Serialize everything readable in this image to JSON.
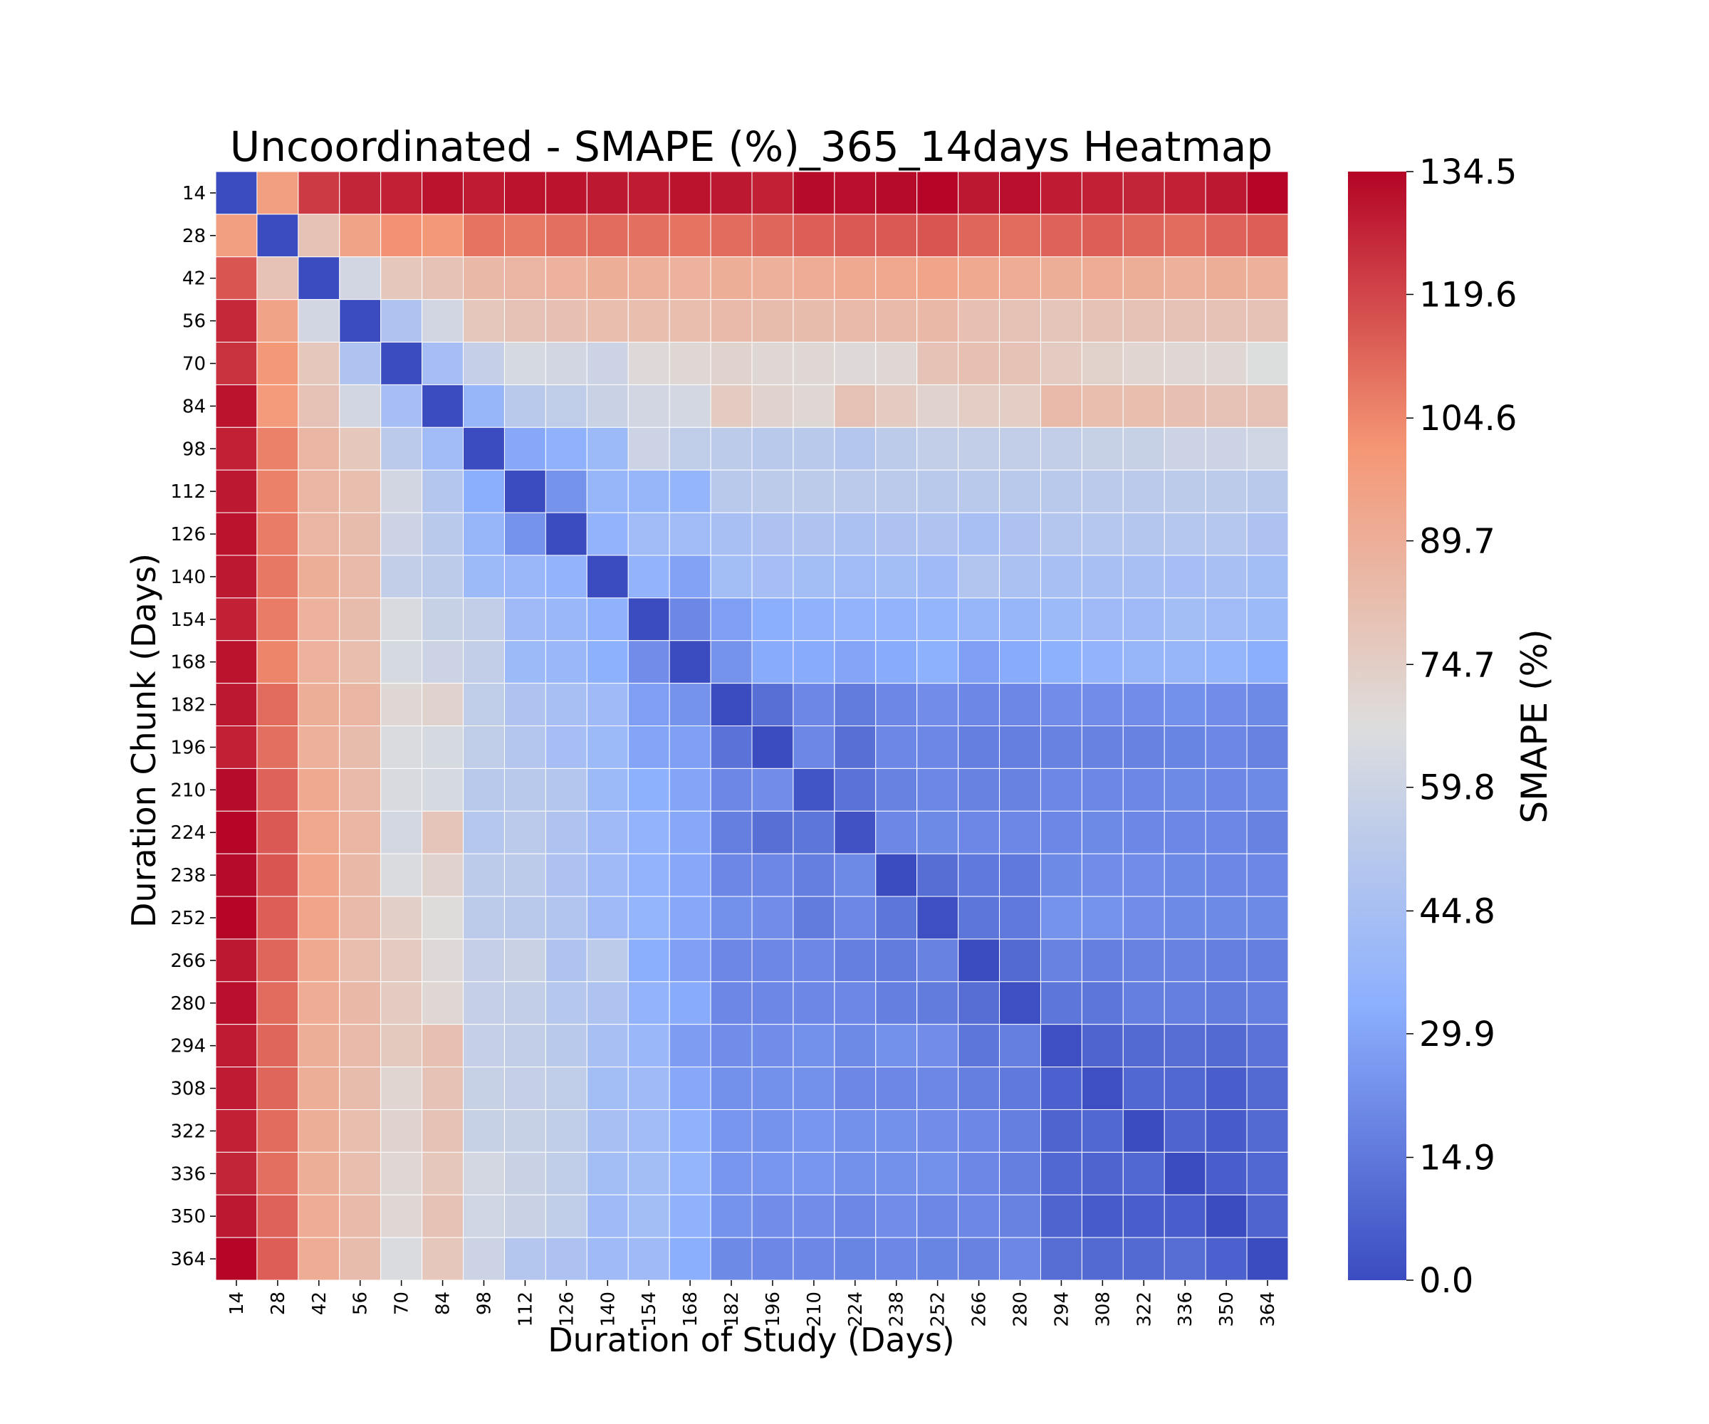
{
  "chart_data": {
    "type": "heatmap",
    "title": "Uncoordinated - SMAPE (%)_365_14days Heatmap",
    "xlabel": "Duration of Study (Days)",
    "ylabel": "Duration Chunk (Days)",
    "colorbar_label": "SMAPE (%)",
    "colormap": "coolwarm",
    "vmin": 0.0,
    "vmax": 134.5,
    "colorbar_ticks": [
      "0.0",
      "14.9",
      "29.9",
      "44.8",
      "59.8",
      "74.7",
      "89.7",
      "104.6",
      "119.6",
      "134.5"
    ],
    "x": [
      "14",
      "28",
      "42",
      "56",
      "70",
      "84",
      "98",
      "112",
      "126",
      "140",
      "154",
      "168",
      "182",
      "196",
      "210",
      "224",
      "238",
      "252",
      "266",
      "280",
      "294",
      "308",
      "322",
      "336",
      "350",
      "364"
    ],
    "y": [
      "14",
      "28",
      "42",
      "56",
      "70",
      "84",
      "98",
      "112",
      "126",
      "140",
      "154",
      "168",
      "182",
      "196",
      "210",
      "224",
      "238",
      "252",
      "266",
      "280",
      "294",
      "308",
      "322",
      "336",
      "350",
      "364"
    ],
    "values": [
      [
        0,
        97,
        122,
        127,
        128,
        131,
        129,
        131,
        131,
        130,
        129,
        131,
        130,
        128,
        133,
        132,
        133,
        134,
        130,
        132,
        129,
        128,
        127,
        128,
        130,
        134
      ],
      [
        97,
        0,
        80,
        95,
        102,
        100,
        109,
        108,
        110,
        111,
        110,
        109,
        111,
        112,
        114,
        115,
        115,
        116,
        112,
        111,
        113,
        114,
        112,
        111,
        113,
        114
      ],
      [
        116,
        80,
        0,
        62,
        78,
        80,
        85,
        86,
        88,
        90,
        89,
        88,
        90,
        89,
        91,
        92,
        93,
        94,
        92,
        91,
        90,
        91,
        90,
        89,
        90,
        89
      ],
      [
        126,
        95,
        62,
        0,
        48,
        62,
        78,
        80,
        81,
        82,
        82,
        82,
        84,
        83,
        83,
        84,
        84,
        85,
        81,
        80,
        79,
        80,
        80,
        80,
        80,
        80
      ],
      [
        124,
        100,
        78,
        48,
        0,
        44,
        57,
        64,
        62,
        60,
        69,
        70,
        72,
        70,
        70,
        69,
        70,
        80,
        81,
        80,
        76,
        73,
        71,
        70,
        70,
        67
      ],
      [
        131,
        99,
        80,
        62,
        44,
        0,
        38,
        52,
        55,
        59,
        62,
        63,
        76,
        72,
        70,
        80,
        76,
        72,
        75,
        75,
        84,
        82,
        82,
        81,
        80,
        80
      ],
      [
        128,
        106,
        86,
        78,
        53,
        42,
        0,
        31,
        35,
        40,
        60,
        55,
        54,
        52,
        52,
        50,
        54,
        56,
        56,
        56,
        56,
        58,
        58,
        60,
        60,
        61
      ],
      [
        130,
        106,
        86,
        82,
        62,
        50,
        33,
        0,
        24,
        38,
        38,
        37,
        52,
        54,
        54,
        53,
        53,
        52,
        52,
        52,
        52,
        53,
        53,
        54,
        54,
        52
      ],
      [
        131,
        107,
        86,
        83,
        60,
        52,
        38,
        24,
        0,
        36,
        42,
        42,
        45,
        47,
        48,
        46,
        47,
        48,
        45,
        47,
        50,
        51,
        50,
        51,
        51,
        47
      ],
      [
        130,
        108,
        90,
        84,
        56,
        54,
        40,
        39,
        36,
        0,
        36,
        29,
        43,
        44,
        43,
        42,
        43,
        41,
        49,
        46,
        45,
        45,
        45,
        44,
        45,
        43
      ],
      [
        128,
        107,
        88,
        83,
        65,
        58,
        56,
        41,
        39,
        35,
        0,
        20,
        28,
        33,
        35,
        36,
        36,
        37,
        38,
        38,
        40,
        41,
        41,
        43,
        42,
        40
      ],
      [
        131,
        105,
        88,
        82,
        64,
        60,
        56,
        40,
        39,
        34,
        22,
        0,
        24,
        32,
        32,
        30,
        32,
        34,
        28,
        32,
        34,
        36,
        38,
        38,
        37,
        33
      ],
      [
        130,
        111,
        90,
        86,
        70,
        72,
        55,
        48,
        45,
        41,
        28,
        24,
        0,
        12,
        20,
        16,
        20,
        22,
        20,
        20,
        22,
        22,
        22,
        23,
        22,
        21
      ],
      [
        128,
        110,
        89,
        83,
        66,
        64,
        55,
        50,
        44,
        40,
        30,
        28,
        13,
        0,
        20,
        12,
        20,
        20,
        17,
        17,
        18,
        18,
        18,
        19,
        20,
        18
      ],
      [
        133,
        113,
        92,
        84,
        65,
        64,
        52,
        52,
        50,
        40,
        34,
        30,
        20,
        22,
        3,
        13,
        18,
        20,
        18,
        18,
        20,
        20,
        20,
        21,
        20,
        21
      ],
      [
        134,
        115,
        93,
        86,
        63,
        79,
        51,
        53,
        48,
        41,
        36,
        31,
        17,
        12,
        14,
        2,
        20,
        21,
        20,
        20,
        20,
        21,
        20,
        20,
        20,
        18
      ],
      [
        133,
        116,
        94,
        85,
        66,
        72,
        54,
        54,
        47,
        41,
        36,
        31,
        20,
        20,
        17,
        21,
        0,
        11,
        15,
        15,
        21,
        22,
        22,
        21,
        20,
        20
      ],
      [
        134,
        114,
        94,
        84,
        74,
        68,
        54,
        52,
        49,
        41,
        37,
        31,
        23,
        22,
        16,
        20,
        14,
        1,
        14,
        15,
        24,
        24,
        22,
        21,
        21,
        21
      ],
      [
        130,
        112,
        92,
        82,
        76,
        69,
        57,
        59,
        48,
        54,
        33,
        28,
        20,
        20,
        20,
        17,
        16,
        18,
        0,
        10,
        18,
        17,
        18,
        18,
        17,
        17
      ],
      [
        132,
        111,
        91,
        85,
        76,
        70,
        57,
        56,
        51,
        48,
        36,
        32,
        20,
        20,
        20,
        20,
        17,
        16,
        11,
        1,
        14,
        14,
        17,
        17,
        16,
        17
      ],
      [
        129,
        112,
        90,
        84,
        77,
        81,
        57,
        56,
        52,
        45,
        39,
        27,
        22,
        22,
        23,
        21,
        23,
        22,
        14,
        17,
        1,
        8,
        10,
        11,
        10,
        13
      ],
      [
        129,
        112,
        90,
        83,
        71,
        80,
        58,
        57,
        55,
        43,
        41,
        31,
        23,
        23,
        23,
        20,
        20,
        20,
        17,
        15,
        7,
        1,
        9,
        9,
        6,
        10
      ],
      [
        128,
        111,
        90,
        82,
        72,
        80,
        58,
        58,
        55,
        45,
        42,
        35,
        25,
        24,
        25,
        23,
        23,
        22,
        20,
        17,
        8,
        9,
        0,
        8,
        5,
        10
      ],
      [
        127,
        110,
        90,
        82,
        70,
        78,
        63,
        59,
        55,
        43,
        43,
        37,
        25,
        25,
        25,
        23,
        23,
        23,
        20,
        17,
        9,
        8,
        9,
        0,
        6,
        9
      ],
      [
        130,
        113,
        91,
        84,
        70,
        80,
        61,
        59,
        55,
        41,
        43,
        35,
        24,
        22,
        22,
        20,
        22,
        20,
        20,
        18,
        8,
        5,
        6,
        6,
        0,
        8
      ],
      [
        134,
        114,
        91,
        83,
        66,
        78,
        60,
        50,
        47,
        41,
        41,
        33,
        21,
        20,
        20,
        19,
        20,
        19,
        18,
        20,
        11,
        10,
        10,
        11,
        7,
        0
      ]
    ]
  }
}
